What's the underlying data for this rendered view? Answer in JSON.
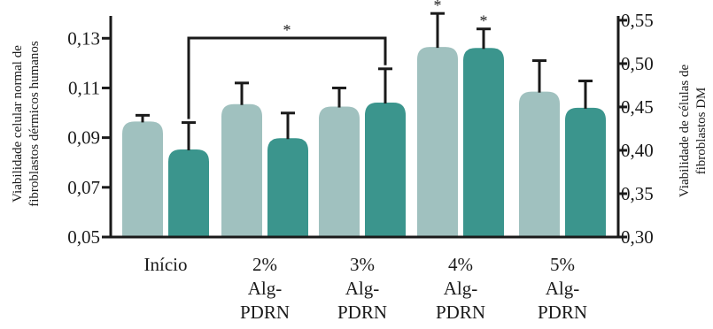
{
  "chart_data": {
    "type": "bar",
    "categories": [
      [
        "Início"
      ],
      [
        "2%",
        "Alg-",
        "PDRN"
      ],
      [
        "3%",
        "Alg-",
        "PDRN"
      ],
      [
        "4%",
        "Alg-",
        "PDRN"
      ],
      [
        "5%",
        "Alg-",
        "PDRN"
      ]
    ],
    "series": [
      {
        "axis": "left",
        "color": "#a0c1bf",
        "values": [
          0.0965,
          0.1035,
          0.1025,
          0.1265,
          0.1085
        ],
        "errors": [
          0.0025,
          0.0085,
          0.0075,
          0.0135,
          0.0125
        ]
      },
      {
        "axis": "right",
        "color": "#3b958d",
        "values": [
          0.401,
          0.414,
          0.455,
          0.518,
          0.449
        ],
        "errors": [
          0.031,
          0.029,
          0.039,
          0.022,
          0.031
        ]
      }
    ],
    "yleft": {
      "label": [
        "Viabilidade celular normal de",
        "fibroblastos dérmicos humanos"
      ],
      "ticks": [
        "0,05",
        "0,07",
        "0,09",
        "0,11",
        "0,13"
      ],
      "tick_values": [
        0.05,
        0.07,
        0.09,
        0.11,
        0.13
      ],
      "ylim": [
        0.05,
        0.139
      ]
    },
    "yright": {
      "label": [
        "Viabilidade de células de",
        "fibroblastos DM"
      ],
      "ticks": [
        "0,30",
        "0,35",
        "0,40",
        "0,45",
        "0,50",
        "0,55"
      ],
      "tick_values": [
        0.3,
        0.35,
        0.4,
        0.45,
        0.5,
        0.55
      ],
      "ylim": [
        0.3,
        0.555
      ]
    },
    "significance": {
      "bracket": {
        "from_category": 0,
        "to_category": 2,
        "series": 1,
        "label": "*"
      },
      "stars": [
        {
          "category": 3,
          "series": 0,
          "label": "*"
        },
        {
          "category": 3,
          "series": 1,
          "label": "*"
        }
      ]
    },
    "grid": false
  }
}
